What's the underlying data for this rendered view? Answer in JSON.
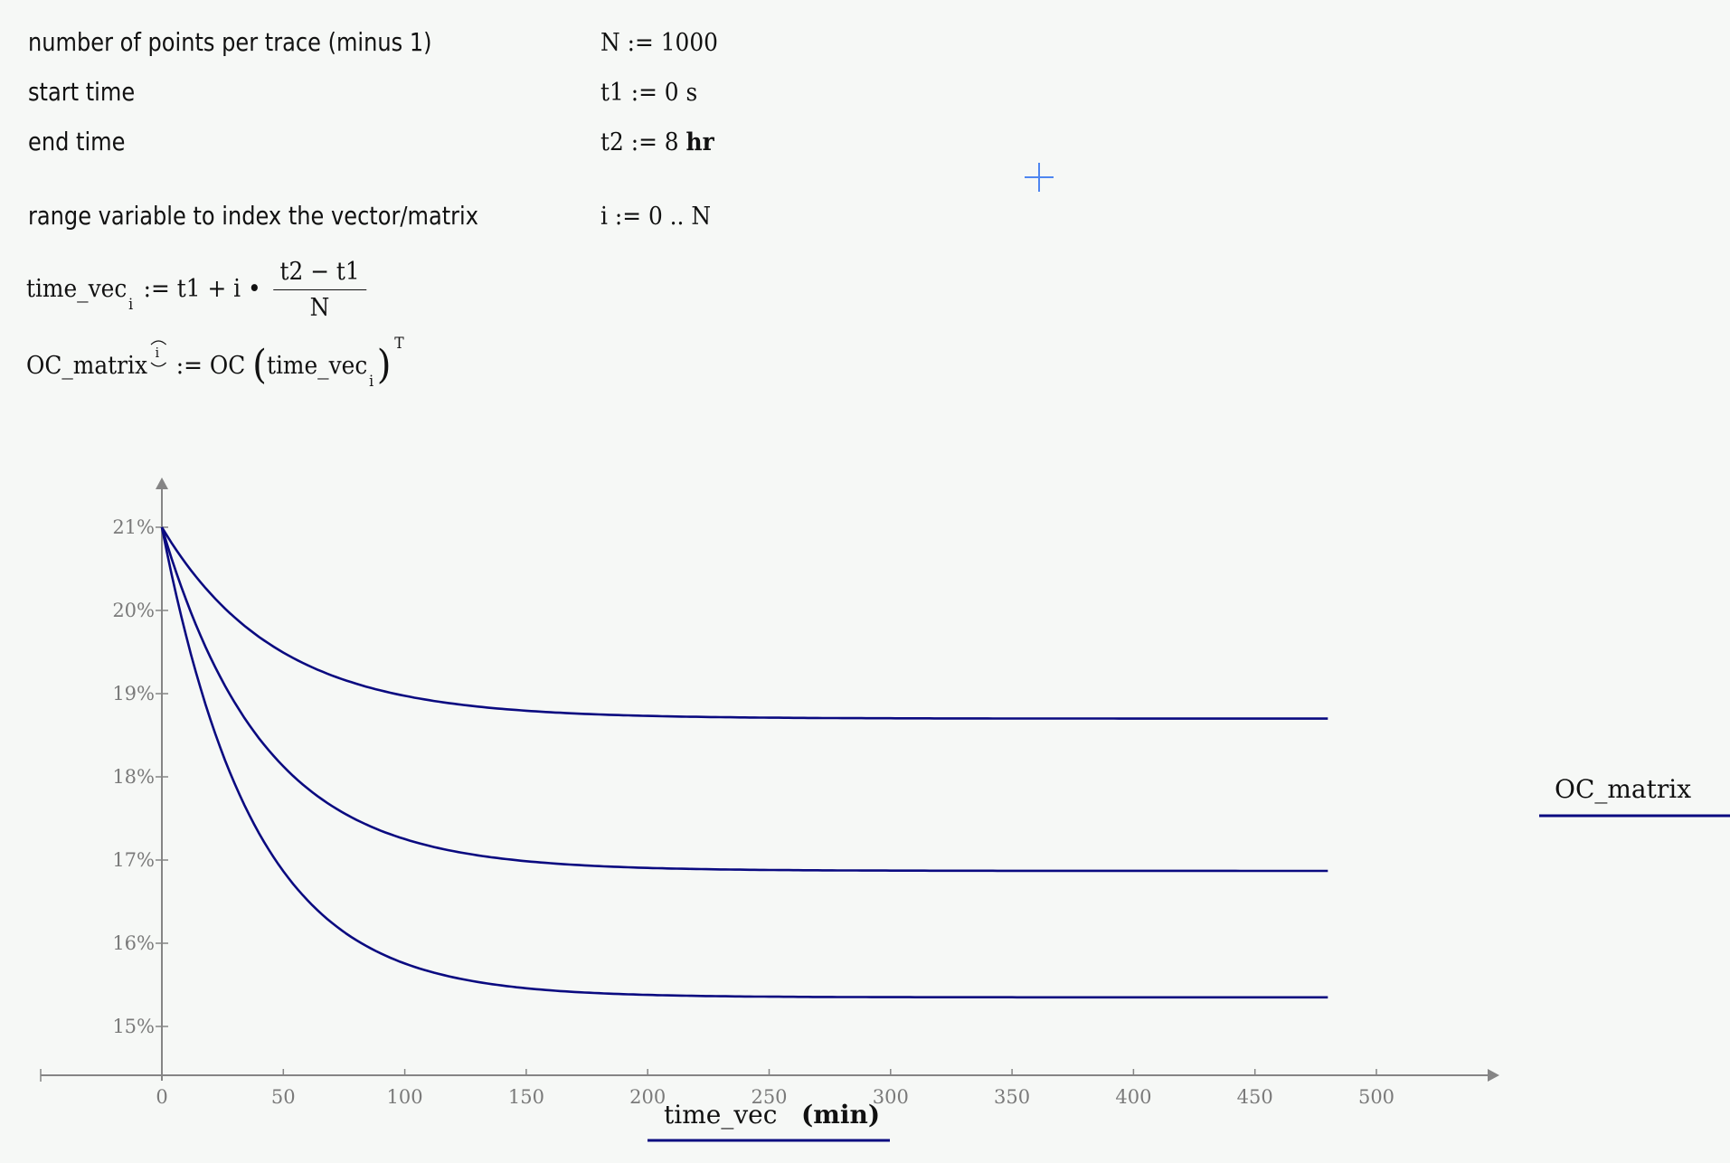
{
  "definitions": [
    {
      "label": "number of points per trace (minus 1)",
      "var": "N",
      "assign": ":=",
      "value": "1000",
      "unit": ""
    },
    {
      "label": "start time",
      "var": "t1",
      "assign": ":=",
      "value": "0",
      "unit": "s"
    },
    {
      "label": "end time",
      "var": "t2",
      "assign": ":=",
      "value": "8",
      "unit": "hr"
    },
    {
      "label": "range variable to index the vector/matrix",
      "var": "i",
      "assign": ":=",
      "value": "0 .. N",
      "unit": ""
    }
  ],
  "equations": {
    "time_vec": {
      "lhs": "time_vec",
      "index": "i",
      "assign": ":=",
      "rhs_prefix": "t1 + i •",
      "numerator": "t2 − t1",
      "denominator": "N"
    },
    "oc_matrix": {
      "lhs": "OC_matrix",
      "col_index": "i",
      "assign": ":=",
      "func": "OC",
      "arg": "time_vec",
      "arg_index": "i",
      "transpose": "T"
    }
  },
  "chart_data": {
    "type": "line",
    "title": "",
    "xlabel": "time_vec",
    "xunit": "(min)",
    "ylabel": "OC_matrix",
    "x_ticks": [
      0,
      50,
      100,
      150,
      200,
      250,
      300,
      350,
      400,
      450,
      500
    ],
    "y_ticks": [
      "15%",
      "16%",
      "17%",
      "18%",
      "19%",
      "20%",
      "21%"
    ],
    "y_tick_values": [
      15,
      16,
      17,
      18,
      19,
      20,
      21
    ],
    "xlim": [
      -50,
      550
    ],
    "ylim": [
      14.4,
      21.7
    ],
    "grid": false,
    "line_color": "#0a0a80",
    "x": [
      0,
      20,
      40,
      60,
      80,
      100,
      150,
      200,
      250,
      300,
      350,
      400,
      450,
      480
    ],
    "series": [
      {
        "name": "OC_matrix col 0",
        "values": [
          21.0,
          20.25,
          19.75,
          19.41,
          19.18,
          19.03,
          18.83,
          18.75,
          18.72,
          18.71,
          18.7,
          18.7,
          18.7,
          18.7
        ],
        "model": {
          "c_inf": 18.7,
          "c0": 21.0,
          "tau": 47
        }
      },
      {
        "name": "OC_matrix col 1",
        "values": [
          21.0,
          19.56,
          18.53,
          17.96,
          17.58,
          17.27,
          17.0,
          16.9,
          16.88,
          16.87,
          16.87,
          16.87,
          16.87,
          16.87
        ],
        "model": {
          "c_inf": 16.87,
          "c0": 21.0,
          "tau": 42
        }
      },
      {
        "name": "OC_matrix col 2",
        "values": [
          21.0,
          18.55,
          17.2,
          16.4,
          15.92,
          15.66,
          15.41,
          15.36,
          15.35,
          15.35,
          15.35,
          15.35,
          15.35,
          15.35
        ],
        "model": {
          "c_inf": 15.35,
          "c0": 21.0,
          "tau": 38
        }
      }
    ],
    "legend": {
      "position": "right",
      "entries": [
        "OC_matrix"
      ]
    }
  },
  "legend_label": "OC_matrix",
  "xaxis_label": {
    "var": "time_vec",
    "unit": "(min)"
  }
}
